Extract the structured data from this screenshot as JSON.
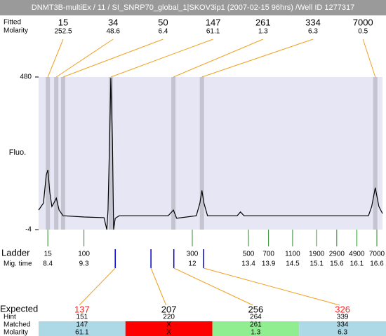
{
  "chart_data": {
    "type": "electropherogram",
    "title": "DNMT3B-multiEx / 11 / SI_SNRP70_global_1|SKOV3ip1 (2007-02-15 96hrs) /Well ID 1277317",
    "peak_row_labels": [
      "Fitted",
      "Molarity"
    ],
    "peaks": [
      {
        "size": 15,
        "molarity": 252.5,
        "mig_time": 8.4
      },
      {
        "size": 34,
        "molarity": 48.6,
        "mig_time": 8.61
      },
      {
        "size": 50,
        "molarity": 6.4,
        "mig_time": 8.78
      },
      {
        "size": 147,
        "molarity": 61.1,
        "mig_time": 9.97
      },
      {
        "size": 261,
        "molarity": 1.3,
        "mig_time": 11.53
      },
      {
        "size": 334,
        "molarity": 6.3,
        "mig_time": 12.24
      },
      {
        "size": 7000,
        "molarity": 0.5,
        "mig_time": 16.56
      }
    ],
    "ylabel": "Fluo.",
    "ylim": [
      -4,
      480
    ],
    "yticks": [
      -4,
      480
    ],
    "xlim": [
      8.17,
      16.74
    ],
    "trace": {
      "x": [
        8.17,
        8.29,
        8.36,
        8.4,
        8.45,
        8.5,
        8.55,
        8.61,
        8.68,
        8.78,
        9.31,
        9.8,
        9.83,
        9.87,
        9.9,
        9.94,
        9.97,
        10.01,
        10.04,
        10.08,
        10.18,
        11.4,
        11.53,
        11.61,
        12.1,
        12.19,
        12.24,
        12.29,
        12.38,
        13.12,
        13.2,
        13.29,
        16.39,
        16.47,
        16.56,
        16.65,
        16.74
      ],
      "y": [
        58,
        80,
        169,
        185,
        114,
        69,
        80,
        96,
        58,
        40,
        36,
        34,
        18,
        -4,
        58,
        280,
        477,
        280,
        -4,
        32,
        40,
        40,
        58,
        32,
        40,
        80,
        120,
        80,
        40,
        40,
        52,
        40,
        40,
        69,
        129,
        69,
        47
      ]
    },
    "ladder_label": "Ladder",
    "mig_time_label": "Mig. time",
    "ladder": [
      {
        "size": 15,
        "mig_time": 8.4
      },
      {
        "size": 100,
        "mig_time": 9.3
      },
      {
        "size": 300,
        "mig_time": 12
      },
      {
        "size": 500,
        "mig_time": 13.4
      },
      {
        "size": 700,
        "mig_time": 13.9
      },
      {
        "size": 1100,
        "mig_time": 14.5
      },
      {
        "size": 1900,
        "mig_time": 15.1
      },
      {
        "size": 2900,
        "mig_time": 15.6
      },
      {
        "size": 4900,
        "mig_time": 16.1
      },
      {
        "size": 7000,
        "mig_time": 16.6
      }
    ],
    "table_row_labels": [
      "Expected",
      "Hint",
      "Matched",
      "Molarity"
    ],
    "expected": [
      {
        "expected": 137,
        "hint": 151,
        "matched": 147,
        "molarity": 61.1,
        "mig_time": 10.08,
        "color": "#ff2020",
        "cell_color": "#add8e6"
      },
      {
        "expected": 207,
        "hint": 220,
        "matched": "X",
        "molarity": "X",
        "mig_time": 10.97,
        "color": "#000000",
        "cell_color": "#ff0000"
      },
      {
        "expected": 256,
        "hint": 264,
        "matched": 261,
        "molarity": 1.3,
        "mig_time": 11.54,
        "color": "#000000",
        "cell_color": "#90ee90"
      },
      {
        "expected": 326,
        "hint": 339,
        "matched": 334,
        "molarity": 6.3,
        "mig_time": 12.28,
        "color": "#ff2020",
        "cell_color": "#add8e6"
      }
    ]
  }
}
